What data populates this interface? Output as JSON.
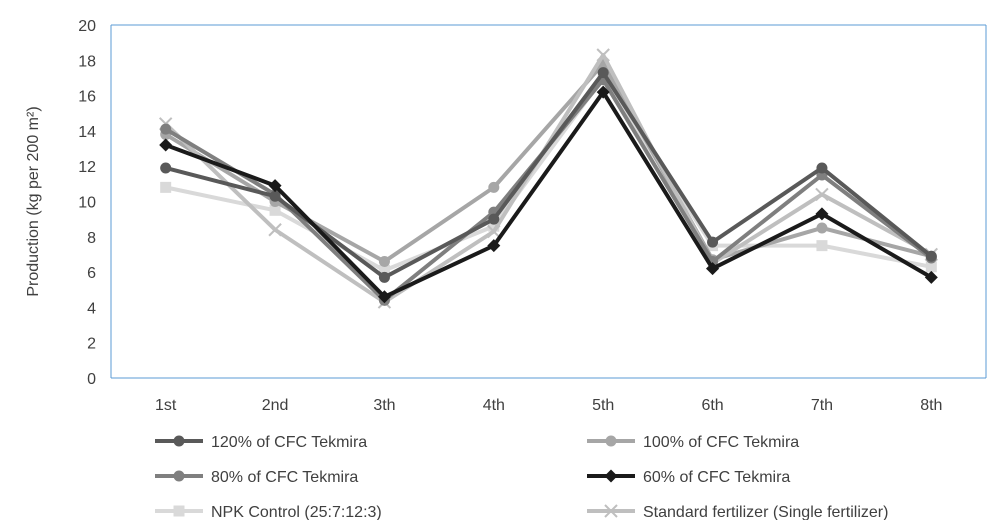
{
  "chart_data": {
    "type": "line",
    "title": "",
    "xlabel": "",
    "ylabel": "Production (kg per 200 m²)",
    "ylim": [
      0,
      20
    ],
    "yticks": [
      "0",
      "2",
      "4",
      "6",
      "8",
      "10",
      "12",
      "14",
      "16",
      "18",
      "20"
    ],
    "categories": [
      "1st",
      "2nd",
      "3th",
      "4th",
      "5th",
      "6th",
      "7th",
      "8th"
    ],
    "grid": false,
    "legend_position": "bottom",
    "series": [
      {
        "name": "120% of CFC Tekmira",
        "color": "#595959",
        "marker": "circle",
        "values": [
          11.9,
          10.3,
          5.7,
          9.0,
          17.3,
          7.7,
          11.9,
          6.9
        ]
      },
      {
        "name": "100% of CFC Tekmira",
        "color": "#a6a6a6",
        "marker": "circle",
        "values": [
          13.8,
          10.0,
          6.6,
          10.8,
          17.8,
          6.7,
          8.5,
          6.9
        ]
      },
      {
        "name": "80% of CFC Tekmira",
        "color": "#7f7f7f",
        "marker": "circle",
        "values": [
          14.1,
          10.4,
          4.4,
          9.4,
          16.9,
          6.6,
          11.5,
          6.8
        ]
      },
      {
        "name": "60% of CFC Tekmira",
        "color": "#1a1a1a",
        "marker": "diamond",
        "values": [
          13.2,
          10.9,
          4.6,
          7.5,
          16.2,
          6.2,
          9.3,
          5.7
        ]
      },
      {
        "name": "NPK Control (25:7:12:3)",
        "color": "#d9d9d9",
        "marker": "square",
        "values": [
          10.8,
          9.5,
          6.1,
          8.6,
          17.0,
          7.5,
          7.5,
          6.3
        ]
      },
      {
        "name": "Standard fertilizer (Single fertilizer)",
        "color": "#bfbfbf",
        "marker": "x",
        "values": [
          14.4,
          8.4,
          4.3,
          8.3,
          18.3,
          6.5,
          10.4,
          7.0
        ]
      }
    ]
  }
}
